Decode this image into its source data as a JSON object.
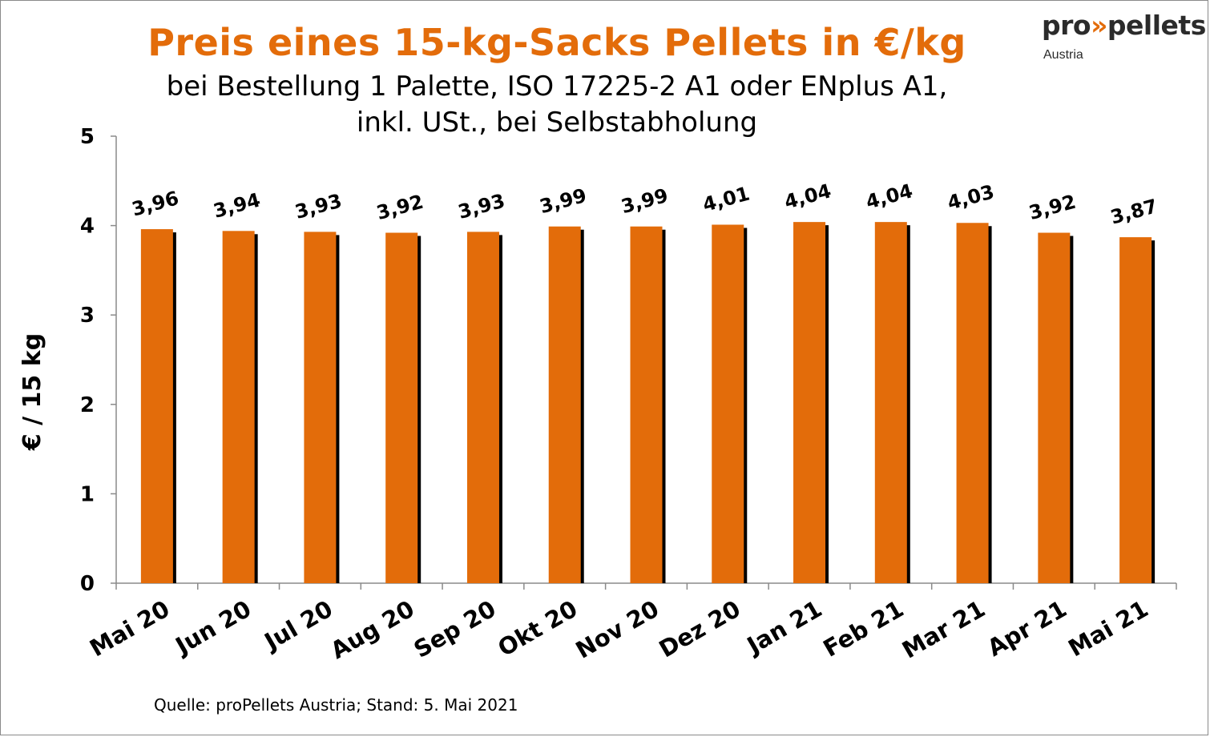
{
  "header": {
    "title": "Preis eines 15-kg-Sacks Pellets in €/kg",
    "subtitle_line1": "bei Bestellung 1 Palette, ISO 17225-2 A1 oder ENplus A1,",
    "subtitle_line2": "inkl. USt., bei Selbstabholung"
  },
  "logo": {
    "text_pre": "pro",
    "text_arrows": "»",
    "text_post": "pellets",
    "sub": "Austria"
  },
  "footer": {
    "source": "Quelle: proPellets Austria; Stand: 5. Mai 2021"
  },
  "colors": {
    "bar": "#e36c0a",
    "bar_shadow": "#000000",
    "title": "#e36c0a"
  },
  "chart_data": {
    "type": "bar",
    "title": "Preis eines 15-kg-Sacks Pellets in €/kg",
    "xlabel": "",
    "ylabel": "€ / 15 kg",
    "ylim": [
      0,
      5
    ],
    "yticks": [
      "0",
      "1",
      "2",
      "3",
      "4",
      "5"
    ],
    "grid": false,
    "legend": "none",
    "categories": [
      "Mai 20",
      "Jun 20",
      "Jul 20",
      "Aug 20",
      "Sep 20",
      "Okt 20",
      "Nov 20",
      "Dez 20",
      "Jan 21",
      "Feb 21",
      "Mar 21",
      "Apr 21",
      "Mai 21"
    ],
    "values": [
      3.96,
      3.94,
      3.93,
      3.92,
      3.93,
      3.99,
      3.99,
      4.01,
      4.04,
      4.04,
      4.03,
      3.92,
      3.87
    ],
    "data_labels": [
      "3,96",
      "3,94",
      "3,93",
      "3,92",
      "3,93",
      "3,99",
      "3,99",
      "4,01",
      "4,04",
      "4,04",
      "4,03",
      "3,92",
      "3,87"
    ]
  }
}
